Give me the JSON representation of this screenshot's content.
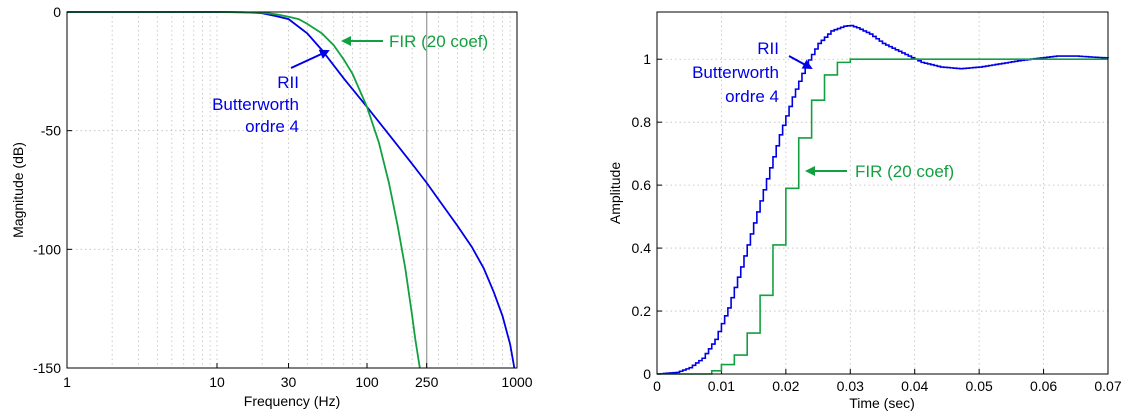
{
  "colors": {
    "iir": "#0000e6",
    "fir": "#13a040"
  },
  "chart_data": [
    {
      "type": "line",
      "xlabel": "Frequency  (Hz)",
      "ylabel": "Magnitude (dB)",
      "xscale": "log",
      "xlim": [
        1,
        1000
      ],
      "ylim": [
        -150,
        0
      ],
      "xticks": [
        1,
        10,
        30,
        100,
        250,
        1000
      ],
      "xtick_labels": [
        "1",
        "10",
        "30",
        "100",
        "250",
        "1000"
      ],
      "yticks": [
        -150,
        -100,
        -50,
        0
      ],
      "ytick_labels": [
        "-150",
        "-100",
        "-50",
        "0"
      ],
      "reference_line_x": 250,
      "grid": true,
      "series": [
        {
          "name": "RII Butterworth ordre 4",
          "color": "#0000e6",
          "x": [
            1,
            5,
            10,
            15,
            20,
            25,
            30,
            40,
            50,
            70,
            100,
            150,
            200,
            250,
            300,
            400,
            500,
            600,
            700,
            800,
            900,
            960
          ],
          "y": [
            0,
            0,
            0,
            -0.1,
            -0.5,
            -1.8,
            -3,
            -9,
            -16,
            -28,
            -40,
            -54,
            -64,
            -72,
            -79,
            -90,
            -99,
            -108,
            -118,
            -128,
            -140,
            -150
          ]
        },
        {
          "name": "FIR (20 coef)",
          "color": "#13a040",
          "x": [
            1,
            10,
            20,
            25,
            30,
            35,
            40,
            50,
            60,
            70,
            80,
            100,
            120,
            140,
            160,
            180,
            200,
            210,
            225
          ],
          "y": [
            0,
            0,
            -0.3,
            -1,
            -2,
            -3,
            -5,
            -9,
            -14,
            -20,
            -26,
            -40,
            -55,
            -72,
            -90,
            -108,
            -128,
            -138,
            -150
          ]
        }
      ],
      "annotations": [
        {
          "label": "FIR (20 coef)",
          "series": "FIR (20 coef)"
        },
        {
          "lines": [
            "RII",
            "Butterworth",
            "ordre 4"
          ],
          "series": "RII Butterworth ordre 4"
        }
      ]
    },
    {
      "type": "line",
      "xlabel": "Time (sec)",
      "ylabel": "Amplitude",
      "xlim": [
        0,
        0.07
      ],
      "ylim": [
        0,
        1.15
      ],
      "xticks": [
        0,
        0.01,
        0.02,
        0.03,
        0.04,
        0.05,
        0.06,
        0.07
      ],
      "xtick_labels": [
        "0",
        "0.01",
        "0.02",
        "0.03",
        "0.04",
        "0.05",
        "0.06",
        "0.07"
      ],
      "yticks": [
        0,
        0.2,
        0.4,
        0.6,
        0.8,
        1
      ],
      "ytick_labels": [
        "0",
        "0.2",
        "0.4",
        "0.6",
        "0.8",
        "1"
      ],
      "grid": true,
      "series": [
        {
          "name": "RII Butterworth ordre 4",
          "color": "#0000e6",
          "step": true,
          "x": [
            0,
            0.003,
            0.005,
            0.007,
            0.009,
            0.011,
            0.013,
            0.015,
            0.017,
            0.019,
            0.021,
            0.023,
            0.025,
            0.027,
            0.029,
            0.03,
            0.031,
            0.033,
            0.035,
            0.038,
            0.041,
            0.044,
            0.047,
            0.05,
            0.053,
            0.056,
            0.059,
            0.062,
            0.065,
            0.068,
            0.07
          ],
          "y": [
            0,
            0.005,
            0.02,
            0.05,
            0.11,
            0.21,
            0.34,
            0.48,
            0.62,
            0.76,
            0.88,
            0.98,
            1.05,
            1.09,
            1.105,
            1.107,
            1.1,
            1.08,
            1.05,
            1.02,
            0.99,
            0.975,
            0.97,
            0.975,
            0.985,
            0.995,
            1.003,
            1.01,
            1.01,
            1.006,
            1.004
          ]
        },
        {
          "name": "FIR (20 coef)",
          "color": "#13a040",
          "step": true,
          "x": [
            0,
            0.0085,
            0.01,
            0.012,
            0.014,
            0.016,
            0.018,
            0.02,
            0.022,
            0.024,
            0.026,
            0.028,
            0.03,
            0.07
          ],
          "y": [
            0,
            0.01,
            0.03,
            0.06,
            0.13,
            0.25,
            0.41,
            0.59,
            0.75,
            0.87,
            0.95,
            0.99,
            1.0,
            1.0
          ]
        }
      ],
      "annotations": [
        {
          "lines": [
            "RII",
            "Butterworth",
            "ordre 4"
          ],
          "series": "RII Butterworth ordre 4"
        },
        {
          "label": "FIR (20 coef)",
          "series": "FIR (20 coef)"
        }
      ]
    }
  ]
}
